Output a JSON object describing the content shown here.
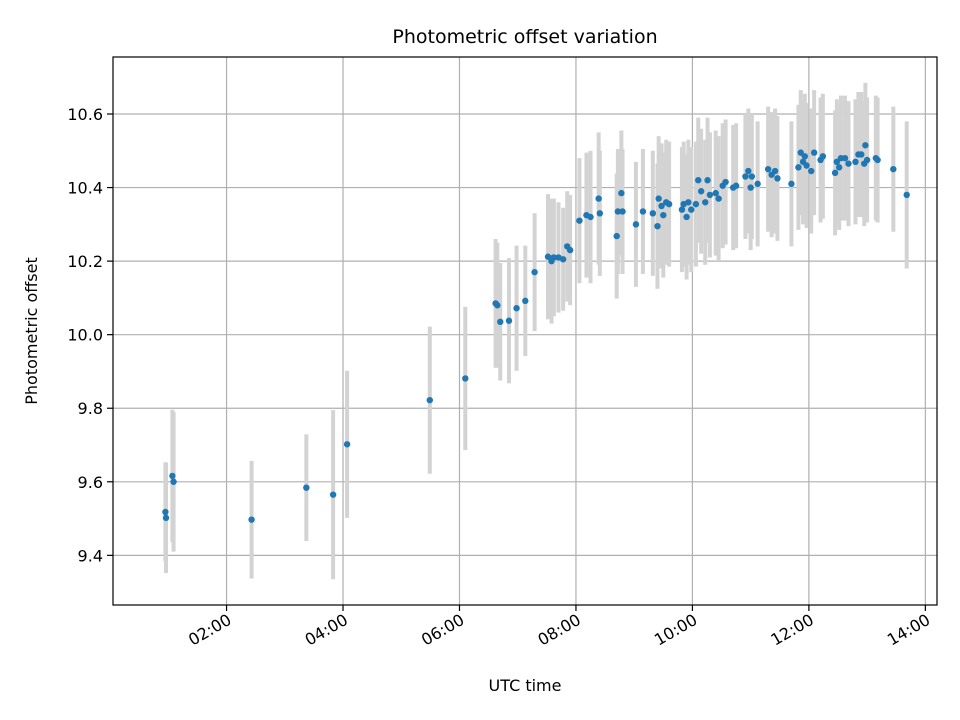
{
  "chart_data": {
    "type": "scatter",
    "title": "Photometric offset variation",
    "xlabel": "UTC time",
    "ylabel": "Photometric offset",
    "x_unit": "hours UTC",
    "xlim": [
      0.05,
      14.2
    ],
    "ylim": [
      9.265,
      10.755
    ],
    "xticks": [
      {
        "value": 2,
        "label": "02:00"
      },
      {
        "value": 4,
        "label": "04:00"
      },
      {
        "value": 6,
        "label": "06:00"
      },
      {
        "value": 8,
        "label": "08:00"
      },
      {
        "value": 10,
        "label": "10:00"
      },
      {
        "value": 12,
        "label": "12:00"
      },
      {
        "value": 14,
        "label": "14:00"
      }
    ],
    "yticks": [
      {
        "value": 9.4,
        "label": "9.4"
      },
      {
        "value": 9.6,
        "label": "9.6"
      },
      {
        "value": 9.8,
        "label": "9.8"
      },
      {
        "value": 10.0,
        "label": "10.0"
      },
      {
        "value": 10.2,
        "label": "10.2"
      },
      {
        "value": 10.4,
        "label": "10.4"
      },
      {
        "value": 10.6,
        "label": "10.6"
      }
    ],
    "grid": true,
    "colors": {
      "marker": "#1f77b4",
      "errorbar": "#d3d3d3",
      "grid": "#b0b0b0"
    },
    "points": [
      [
        0.95,
        9.518,
        0.135
      ],
      [
        0.96,
        9.502,
        0.15
      ],
      [
        1.07,
        9.616,
        0.18
      ],
      [
        1.09,
        9.6,
        0.19
      ],
      [
        2.43,
        9.497,
        0.16
      ],
      [
        3.37,
        9.584,
        0.145
      ],
      [
        3.83,
        9.565,
        0.23
      ],
      [
        4.07,
        9.702,
        0.2
      ],
      [
        5.49,
        9.822,
        0.2
      ],
      [
        6.1,
        9.881,
        0.195
      ],
      [
        6.62,
        10.085,
        0.175
      ],
      [
        6.65,
        10.08,
        0.17
      ],
      [
        6.7,
        10.035,
        0.16
      ],
      [
        6.85,
        10.038,
        0.17
      ],
      [
        6.98,
        10.072,
        0.17
      ],
      [
        7.13,
        10.092,
        0.15
      ],
      [
        7.29,
        10.17,
        0.16
      ],
      [
        7.52,
        10.212,
        0.17
      ],
      [
        7.58,
        10.2,
        0.17
      ],
      [
        7.62,
        10.21,
        0.16
      ],
      [
        7.7,
        10.21,
        0.15
      ],
      [
        7.78,
        10.205,
        0.14
      ],
      [
        7.85,
        10.24,
        0.15
      ],
      [
        7.9,
        10.23,
        0.15
      ],
      [
        8.06,
        10.31,
        0.17
      ],
      [
        8.18,
        10.325,
        0.17
      ],
      [
        8.25,
        10.32,
        0.18
      ],
      [
        8.39,
        10.37,
        0.18
      ],
      [
        8.41,
        10.33,
        0.17
      ],
      [
        8.7,
        10.268,
        0.17
      ],
      [
        8.72,
        10.335,
        0.17
      ],
      [
        8.78,
        10.385,
        0.17
      ],
      [
        8.8,
        10.335,
        0.17
      ],
      [
        9.03,
        10.3,
        0.17
      ],
      [
        9.15,
        10.335,
        0.17
      ],
      [
        9.32,
        10.33,
        0.17
      ],
      [
        9.4,
        10.295,
        0.17
      ],
      [
        9.42,
        10.37,
        0.17
      ],
      [
        9.47,
        10.35,
        0.17
      ],
      [
        9.5,
        10.325,
        0.17
      ],
      [
        9.55,
        10.36,
        0.17
      ],
      [
        9.6,
        10.355,
        0.17
      ],
      [
        9.82,
        10.34,
        0.17
      ],
      [
        9.85,
        10.355,
        0.17
      ],
      [
        9.9,
        10.32,
        0.17
      ],
      [
        9.93,
        10.36,
        0.17
      ],
      [
        9.98,
        10.34,
        0.17
      ],
      [
        10.06,
        10.355,
        0.17
      ],
      [
        10.1,
        10.42,
        0.17
      ],
      [
        10.15,
        10.39,
        0.17
      ],
      [
        10.22,
        10.36,
        0.17
      ],
      [
        10.26,
        10.42,
        0.17
      ],
      [
        10.3,
        10.38,
        0.17
      ],
      [
        10.4,
        10.385,
        0.17
      ],
      [
        10.45,
        10.37,
        0.17
      ],
      [
        10.52,
        10.405,
        0.17
      ],
      [
        10.57,
        10.415,
        0.17
      ],
      [
        10.7,
        10.4,
        0.17
      ],
      [
        10.75,
        10.405,
        0.17
      ],
      [
        10.91,
        10.43,
        0.17
      ],
      [
        10.96,
        10.445,
        0.17
      ],
      [
        11.0,
        10.4,
        0.17
      ],
      [
        11.02,
        10.43,
        0.17
      ],
      [
        11.12,
        10.41,
        0.17
      ],
      [
        11.3,
        10.45,
        0.17
      ],
      [
        11.36,
        10.435,
        0.17
      ],
      [
        11.42,
        10.445,
        0.17
      ],
      [
        11.46,
        10.425,
        0.17
      ],
      [
        11.7,
        10.41,
        0.17
      ],
      [
        11.82,
        10.455,
        0.17
      ],
      [
        11.86,
        10.495,
        0.17
      ],
      [
        11.9,
        10.47,
        0.17
      ],
      [
        11.93,
        10.485,
        0.17
      ],
      [
        11.96,
        10.46,
        0.17
      ],
      [
        12.04,
        10.445,
        0.17
      ],
      [
        12.09,
        10.495,
        0.17
      ],
      [
        12.2,
        10.475,
        0.17
      ],
      [
        12.24,
        10.485,
        0.17
      ],
      [
        12.45,
        10.44,
        0.17
      ],
      [
        12.48,
        10.47,
        0.17
      ],
      [
        12.52,
        10.455,
        0.17
      ],
      [
        12.55,
        10.48,
        0.17
      ],
      [
        12.62,
        10.48,
        0.17
      ],
      [
        12.68,
        10.465,
        0.17
      ],
      [
        12.8,
        10.47,
        0.17
      ],
      [
        12.85,
        10.49,
        0.17
      ],
      [
        12.9,
        10.49,
        0.17
      ],
      [
        12.95,
        10.465,
        0.17
      ],
      [
        12.97,
        10.515,
        0.17
      ],
      [
        13.0,
        10.475,
        0.17
      ],
      [
        13.15,
        10.48,
        0.17
      ],
      [
        13.18,
        10.475,
        0.17
      ],
      [
        13.45,
        10.45,
        0.17
      ],
      [
        13.68,
        10.38,
        0.2
      ]
    ]
  }
}
